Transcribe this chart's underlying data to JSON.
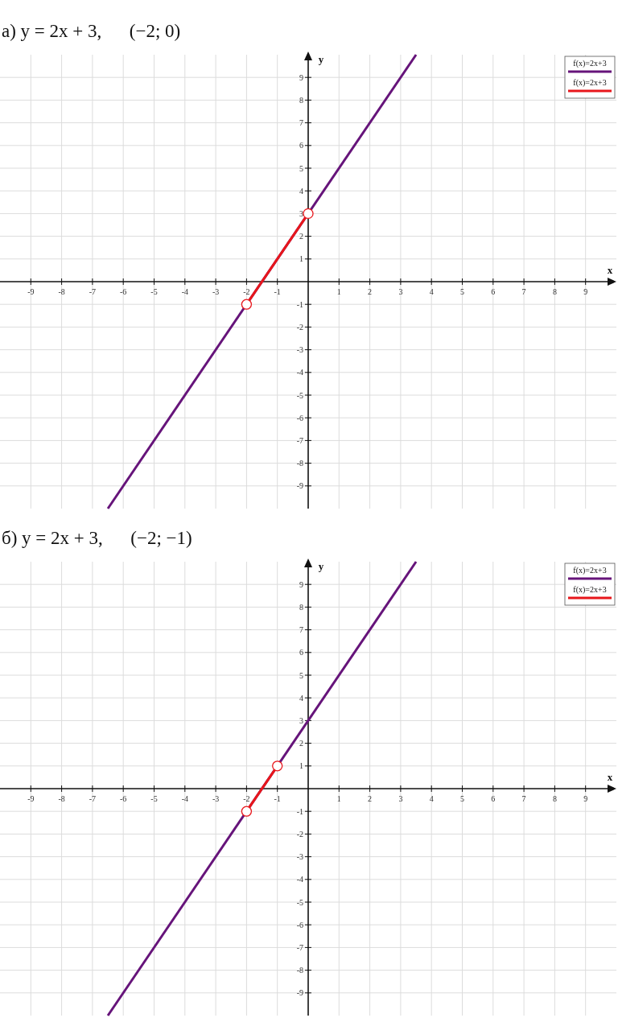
{
  "chart_data": [
    {
      "type": "line",
      "title": "а) y = 2x + 3,      (−2; 0)",
      "xlabel": "x",
      "ylabel": "y",
      "xlim": [
        -10,
        10
      ],
      "ylim": [
        -10,
        10
      ],
      "xticks": [
        -9,
        -8,
        -7,
        -6,
        -5,
        -4,
        -3,
        -2,
        -1,
        1,
        2,
        3,
        4,
        5,
        6,
        7,
        8,
        9
      ],
      "yticks": [
        -9,
        -8,
        -7,
        -6,
        -5,
        -4,
        -3,
        -2,
        -1,
        1,
        2,
        3,
        4,
        5,
        6,
        7,
        8,
        9
      ],
      "grid": true,
      "legend": "top right",
      "series": [
        {
          "name": "f(x)=2x+3",
          "color": "#66147a",
          "x": [
            -6.5,
            3.5
          ],
          "values": [
            -10,
            10
          ]
        },
        {
          "name": "f(x)=2x+3",
          "color": "#e8161b",
          "x": [
            -2,
            0
          ],
          "values": [
            -1,
            3
          ]
        },
        {
          "type": "scatter",
          "marker": "circle",
          "color": "#e8161b",
          "x": [
            -2,
            0
          ],
          "values": [
            -1,
            3
          ]
        }
      ]
    },
    {
      "type": "line",
      "title": "б) y = 2x + 3,      (−2; −1)",
      "xlabel": "x",
      "ylabel": "y",
      "xlim": [
        -10,
        10
      ],
      "ylim": [
        -10,
        10
      ],
      "xticks": [
        -9,
        -8,
        -7,
        -6,
        -5,
        -4,
        -3,
        -2,
        -1,
        1,
        2,
        3,
        4,
        5,
        6,
        7,
        8,
        9
      ],
      "yticks": [
        -9,
        -8,
        -7,
        -6,
        -5,
        -4,
        -3,
        -2,
        -1,
        1,
        2,
        3,
        4,
        5,
        6,
        7,
        8,
        9
      ],
      "grid": true,
      "legend": "top right",
      "series": [
        {
          "name": "f(x)=2x+3",
          "color": "#66147a",
          "x": [
            -6.5,
            3.5
          ],
          "values": [
            -10,
            10
          ]
        },
        {
          "name": "f(x)=2x+3",
          "color": "#e8161b",
          "x": [
            -2,
            -1
          ],
          "values": [
            -1,
            1
          ]
        },
        {
          "type": "scatter",
          "marker": "circle",
          "color": "#e8161b",
          "x": [
            -2,
            -1
          ],
          "values": [
            -1,
            1
          ]
        }
      ]
    }
  ]
}
